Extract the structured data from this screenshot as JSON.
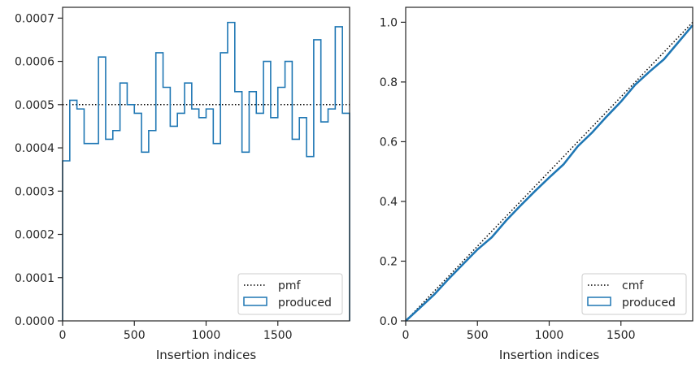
{
  "colors": {
    "produced": "#1f77b4",
    "reference": "#000000",
    "axes": "#262626",
    "legend_border": "#cccccc"
  },
  "chart_data": [
    {
      "type": "step",
      "xlabel": "Insertion indices",
      "ylabel": "",
      "xlim": [
        0,
        2000
      ],
      "ylim": [
        0,
        0.000725
      ],
      "xticks": [
        0,
        500,
        1000,
        1500
      ],
      "xtick_labels": [
        "0",
        "500",
        "1000",
        "1500"
      ],
      "yticks": [
        0,
        0.0001,
        0.0002,
        0.0003,
        0.0004,
        0.0005,
        0.0006,
        0.0007
      ],
      "ytick_labels": [
        "0.0000",
        "0.0001",
        "0.0002",
        "0.0003",
        "0.0004",
        "0.0005",
        "0.0006",
        "0.0007"
      ],
      "legend_location": "lower-right",
      "reference": {
        "name": "pmf",
        "style": "dotted",
        "value": 0.0005
      },
      "series": [
        {
          "name": "produced",
          "bin_width": 50,
          "values": [
            0.00037,
            0.00051,
            0.00049,
            0.00041,
            0.00041,
            0.00061,
            0.00042,
            0.00044,
            0.00055,
            0.0005,
            0.00048,
            0.00039,
            0.00044,
            0.00062,
            0.00054,
            0.00045,
            0.00048,
            0.00055,
            0.00049,
            0.00047,
            0.00049,
            0.00041,
            0.00062,
            0.00069,
            0.00053,
            0.00039,
            0.00053,
            0.00048,
            0.0006,
            0.00047,
            0.00054,
            0.0006,
            0.00042,
            0.00047,
            0.00038,
            0.00065,
            0.00046,
            0.00049,
            0.00068,
            0.00048
          ]
        }
      ]
    },
    {
      "type": "step",
      "xlabel": "Insertion indices",
      "ylabel": "",
      "xlim": [
        0,
        2000
      ],
      "ylim": [
        0,
        1.05
      ],
      "xticks": [
        0,
        500,
        1000,
        1500
      ],
      "xtick_labels": [
        "0",
        "500",
        "1000",
        "1500"
      ],
      "yticks": [
        0,
        0.2,
        0.4,
        0.6,
        0.8,
        1.0
      ],
      "ytick_labels": [
        "0.0",
        "0.2",
        "0.4",
        "0.6",
        "0.8",
        "1.0"
      ],
      "legend_location": "lower-right",
      "reference": {
        "name": "cmf",
        "style": "dotted",
        "x": [
          0,
          2000
        ],
        "y": [
          0,
          1.0
        ]
      },
      "series": [
        {
          "name": "produced",
          "cumulative": true,
          "x": [
            0,
            100,
            200,
            300,
            400,
            500,
            600,
            700,
            800,
            900,
            1000,
            1100,
            1200,
            1300,
            1400,
            1500,
            1600,
            1700,
            1800,
            1900,
            2000
          ],
          "y": [
            0,
            0.044,
            0.089,
            0.141,
            0.19,
            0.239,
            0.28,
            0.336,
            0.386,
            0.434,
            0.48,
            0.524,
            0.585,
            0.631,
            0.684,
            0.734,
            0.791,
            0.835,
            0.876,
            0.933,
            0.99
          ]
        }
      ]
    }
  ]
}
